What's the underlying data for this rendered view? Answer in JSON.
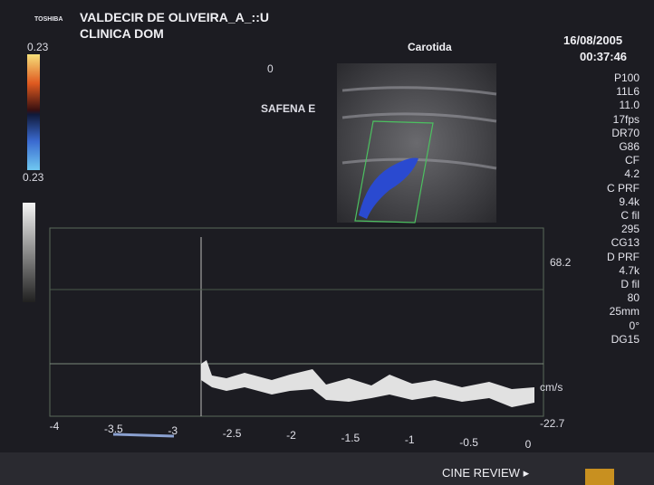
{
  "header": {
    "brand": "TOSHIBA",
    "patient": "VALDECIR DE OLIVEIRA_A_::U",
    "clinic": "CLINICA DOM",
    "date": "16/08/2005",
    "time": "00:37:46",
    "exam": "Carotida"
  },
  "color_scale": {
    "top": "0.23",
    "bottom": "0.23"
  },
  "image": {
    "depth_zero": "0",
    "label": "SAFENA E"
  },
  "parameters": [
    "P100",
    "11L6",
    "11.0",
    "17fps",
    "DR70",
    "G86",
    "CF",
    "4.2",
    "C PRF",
    "9.4k",
    "C fil",
    "295",
    "CG13",
    "D PRF",
    "4.7k",
    "D fil",
    "80",
    "25mm",
    "0°",
    "DG15"
  ],
  "doppler": {
    "max": "68.2",
    "unit": "cm/s",
    "min": "-22.7",
    "time_labels": [
      "-4",
      "-3.5",
      "-3",
      "-2.5",
      "-2",
      "-1.5",
      "-1",
      "-0.5",
      "0"
    ]
  },
  "footer": {
    "mode": "CINE REVIEW ▸"
  }
}
